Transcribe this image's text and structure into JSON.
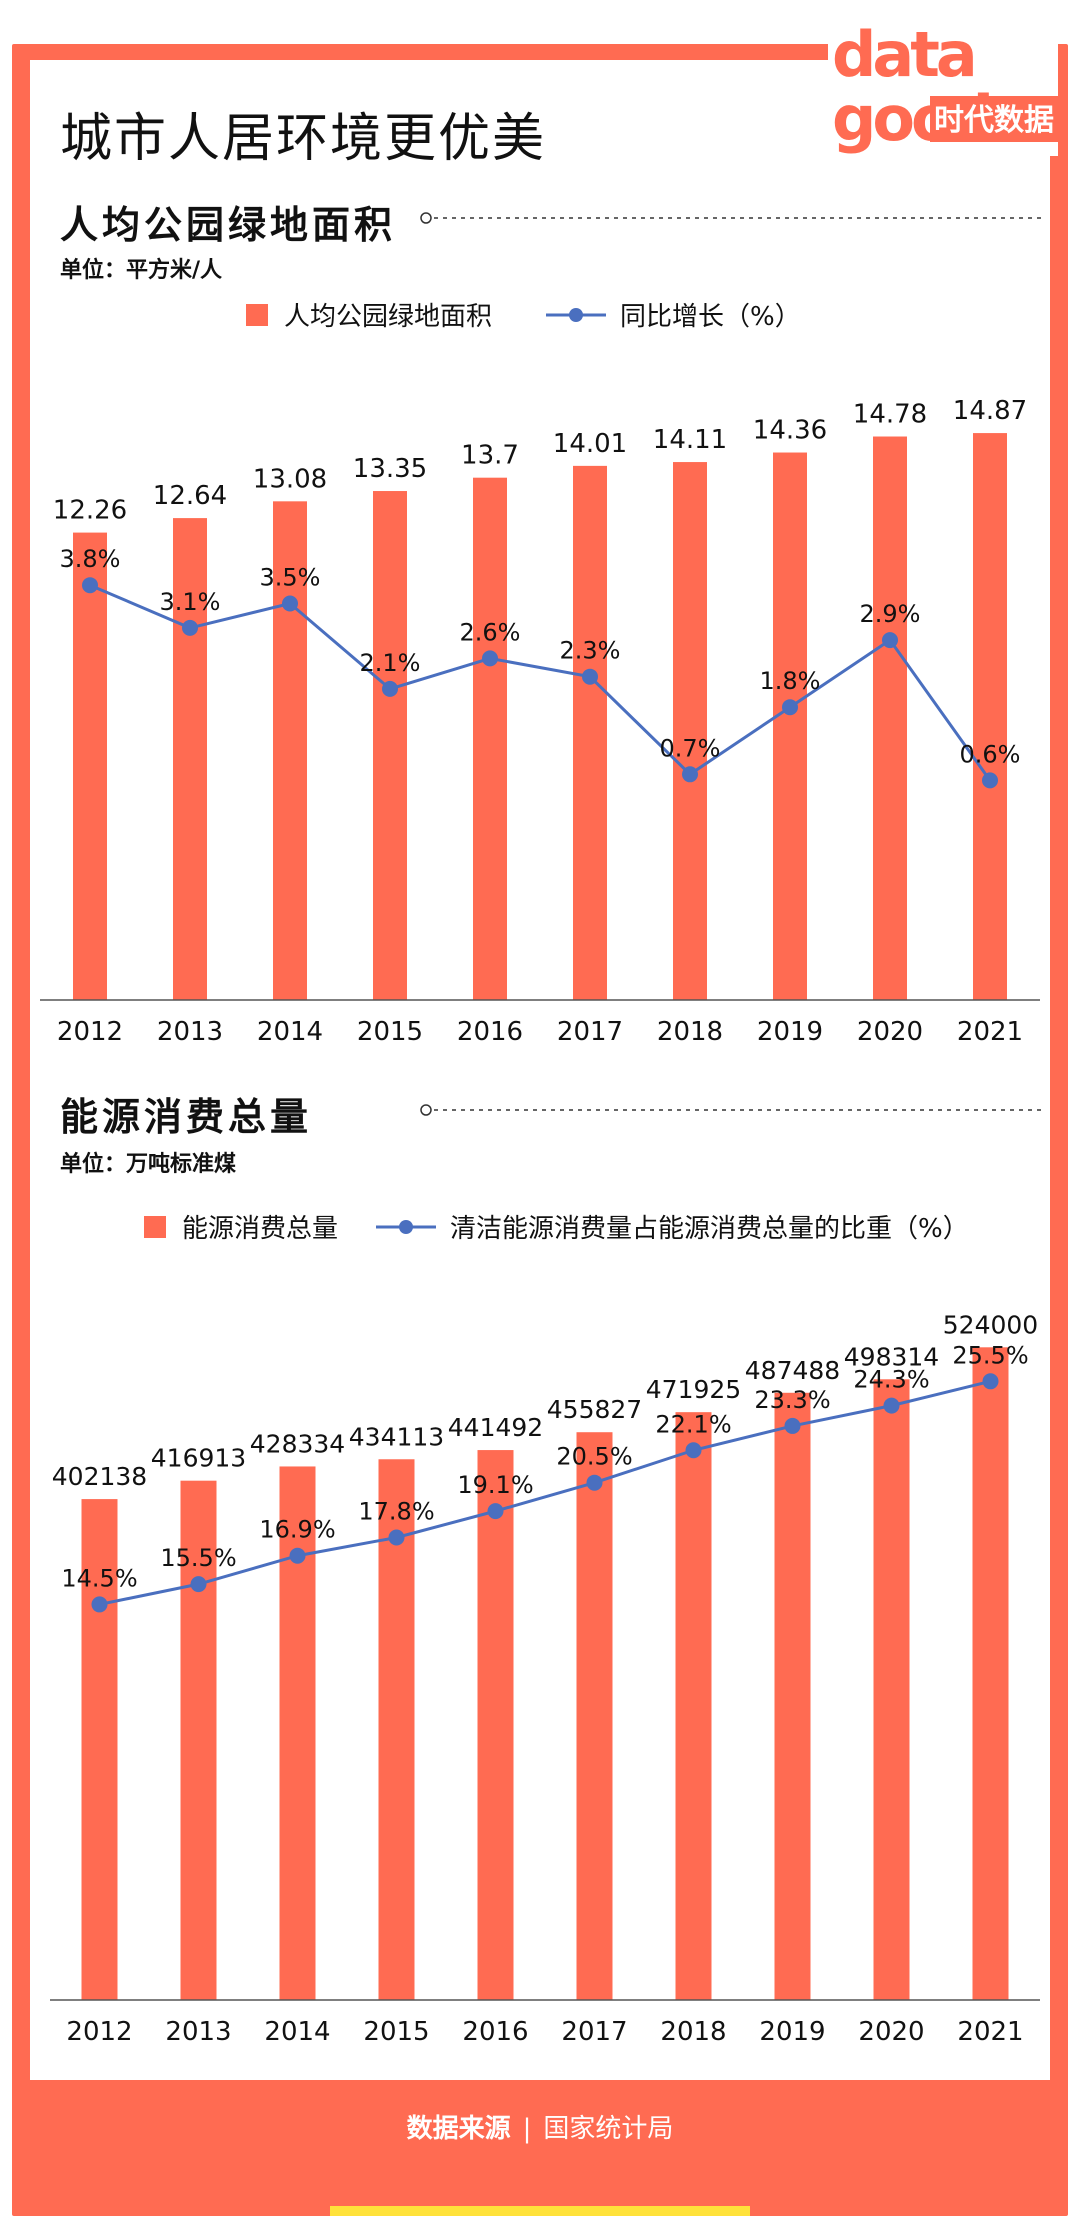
{
  "page_title": "城市人居环境更优美",
  "logo": {
    "text_top": "data",
    "text_bottom": "good",
    "cn": "时代数据"
  },
  "colors": {
    "accent": "#ff6b52",
    "line": "#4a6fbf",
    "text": "#111111",
    "footer_highlight": "#ffe23a"
  },
  "sections": [
    {
      "title": "人均公园绿地面积",
      "unit": "单位：平方米/人",
      "legend_bar": "人均公园绿地面积",
      "legend_line": "同比增长（%）"
    },
    {
      "title": "能源消费总量",
      "unit": "单位：万吨标准煤",
      "legend_bar": "能源消费总量",
      "legend_line": "清洁能源消费量占能源消费总量的比重（%）"
    }
  ],
  "chart_data": [
    {
      "type": "bar",
      "categories": [
        "2012",
        "2013",
        "2014",
        "2015",
        "2016",
        "2017",
        "2018",
        "2019",
        "2020",
        "2021"
      ],
      "series": [
        {
          "name": "人均公园绿地面积",
          "type": "bar",
          "values": [
            12.26,
            12.64,
            13.08,
            13.35,
            13.7,
            14.01,
            14.11,
            14.36,
            14.78,
            14.87
          ],
          "labels": [
            "12.26",
            "12.64",
            "13.08",
            "13.35",
            "13.7",
            "14.01",
            "14.11",
            "14.36",
            "14.78",
            "14.87"
          ]
        },
        {
          "name": "同比增长（%）",
          "type": "line",
          "values": [
            3.8,
            3.1,
            3.5,
            2.1,
            2.6,
            2.3,
            0.7,
            1.8,
            2.9,
            0.6
          ],
          "labels": [
            "3.8%",
            "3.1%",
            "3.5%",
            "2.1%",
            "2.6%",
            "2.3%",
            "0.7%",
            "1.8%",
            "2.9%",
            "0.6%"
          ]
        }
      ],
      "bar_range": [
        0,
        16
      ],
      "line_range": [
        -3,
        7
      ],
      "grid": false
    },
    {
      "type": "bar",
      "categories": [
        "2012",
        "2013",
        "2014",
        "2015",
        "2016",
        "2017",
        "2018",
        "2019",
        "2020",
        "2021"
      ],
      "series": [
        {
          "name": "能源消费总量",
          "type": "bar",
          "values": [
            402138,
            416913,
            428334,
            434113,
            441492,
            455827,
            471925,
            487488,
            498314,
            524000
          ],
          "labels": [
            "402138",
            "416913",
            "428334",
            "434113",
            "441492",
            "455827",
            "471925",
            "487488",
            "498314",
            "524000"
          ]
        },
        {
          "name": "清洁能源消费量占能源消费总量的比重（%）",
          "type": "line",
          "values": [
            14.5,
            15.5,
            16.9,
            17.8,
            19.1,
            20.5,
            22.1,
            23.3,
            24.3,
            25.5
          ],
          "labels": [
            "14.5%",
            "15.5%",
            "16.9%",
            "17.8%",
            "19.1%",
            "20.5%",
            "22.1%",
            "23.3%",
            "24.3%",
            "25.5%"
          ]
        }
      ],
      "bar_range": [
        0,
        570000
      ],
      "line_range": [
        -5,
        30
      ],
      "grid": false
    }
  ],
  "footer": {
    "label": "数据来源",
    "separator": "|",
    "source": "国家统计局"
  }
}
